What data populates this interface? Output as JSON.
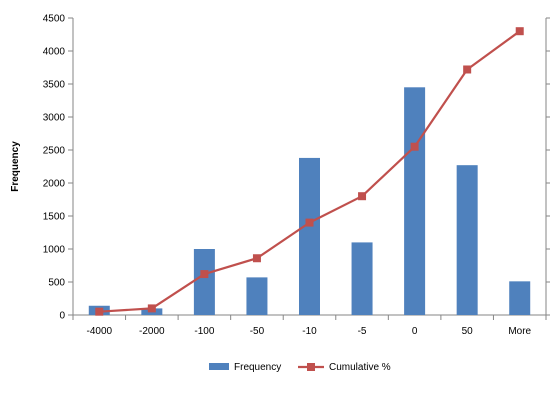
{
  "chart_data": {
    "type": "bar",
    "title": "",
    "xlabel": "",
    "ylabel": "Frequency",
    "categories": [
      "-4000",
      "-2000",
      "-100",
      "-50",
      "-10",
      "-5",
      "0",
      "50",
      "More"
    ],
    "ylim": [
      0,
      4500
    ],
    "y_ticks": [
      0,
      500,
      1000,
      1500,
      2000,
      2500,
      3000,
      3500,
      4000,
      4500
    ],
    "grid": false,
    "legend_position": "bottom",
    "series": [
      {
        "name": "Frequency",
        "type": "bar",
        "color": "#4f81bd",
        "values": [
          140,
          100,
          1000,
          570,
          2380,
          1100,
          3450,
          2270,
          510
        ]
      },
      {
        "name": "Cumulative %",
        "type": "line",
        "marker": "square",
        "color": "#c0504d",
        "axis": "secondary",
        "secondary_scale_labels": "not visible",
        "values_on_primary_scale": [
          50,
          100,
          620,
          860,
          1400,
          1800,
          2550,
          3720,
          4300
        ]
      }
    ]
  }
}
